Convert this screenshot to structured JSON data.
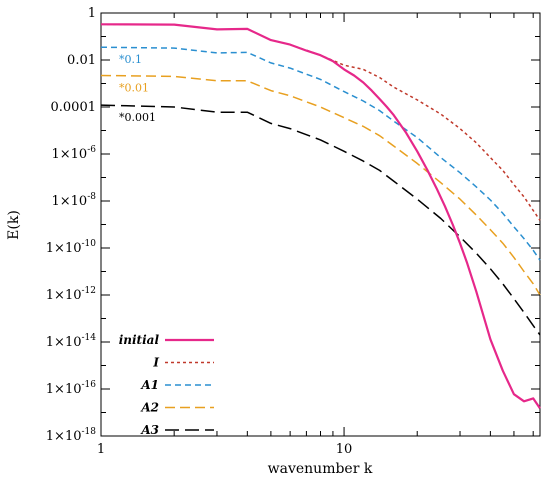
{
  "chart_data": {
    "type": "line",
    "title": "",
    "xlabel": "wavenumber k",
    "ylabel": "E(k)",
    "xscale": "log",
    "yscale": "log",
    "xlim": [
      1,
      64
    ],
    "ylim": [
      1e-18,
      1
    ],
    "grid": false,
    "legend_position": "bottom-left",
    "x_ticks": [
      {
        "value": 1,
        "label": "1"
      },
      {
        "value": 10,
        "label": "10"
      }
    ],
    "y_ticks": [
      {
        "value": 1,
        "base": "1",
        "exp": ""
      },
      {
        "value": 0.01,
        "base": "0.01",
        "exp": ""
      },
      {
        "value": 0.0001,
        "base": "0.0001",
        "exp": ""
      },
      {
        "value": 1e-06,
        "base": "1×10",
        "exp": "-6"
      },
      {
        "value": 1e-08,
        "base": "1×10",
        "exp": "-8"
      },
      {
        "value": 1e-10,
        "base": "1×10",
        "exp": "-10"
      },
      {
        "value": 1e-12,
        "base": "1×10",
        "exp": "-12"
      },
      {
        "value": 1e-14,
        "base": "1×10",
        "exp": "-14"
      },
      {
        "value": 1e-16,
        "base": "1×10",
        "exp": "-16"
      },
      {
        "value": 1e-18,
        "base": "1×10",
        "exp": "-18"
      }
    ],
    "annotations": [
      {
        "text": "*0.1",
        "color": "#2a8fd0",
        "x": 1,
        "y": 0.035
      },
      {
        "text": "*0.01",
        "color": "#e8a020",
        "x": 1,
        "y": 0.0022
      },
      {
        "text": "*0.001",
        "color": "#000000",
        "x": 1,
        "y": 0.00012
      }
    ],
    "series": [
      {
        "name": "initial",
        "color": "#e6288a",
        "dash": "",
        "width": 2.2,
        "x": [
          1,
          2,
          3,
          4,
          5,
          6,
          7,
          8,
          9,
          10,
          11,
          12,
          13,
          14,
          15,
          16,
          18,
          20,
          22,
          24,
          26,
          28,
          30,
          32,
          35,
          40,
          45,
          50,
          55,
          60,
          64
        ],
        "y": [
          0.33,
          0.32,
          0.2,
          0.21,
          0.07,
          0.045,
          0.025,
          0.016,
          0.009,
          0.004,
          0.0022,
          0.0011,
          0.0005,
          0.00022,
          0.0001,
          4.5e-05,
          8e-06,
          1.3e-06,
          2.1e-07,
          3.5e-08,
          6e-09,
          1e-09,
          1.6e-10,
          2.5e-11,
          1.4e-12,
          1.3e-14,
          6e-16,
          6e-17,
          3e-17,
          4e-17,
          1.5e-17
        ]
      },
      {
        "name": "I",
        "color": "#c0392b",
        "dash": "3,3",
        "width": 1.5,
        "x": [
          1,
          2,
          3,
          4,
          5,
          6,
          8,
          10,
          12,
          14,
          16,
          20,
          25,
          30,
          35,
          40,
          45,
          50,
          55,
          60,
          64
        ],
        "y": [
          0.33,
          0.32,
          0.2,
          0.21,
          0.07,
          0.045,
          0.016,
          0.006,
          0.004,
          0.0018,
          0.0007,
          0.0002,
          5e-05,
          1.2e-05,
          3e-06,
          7e-07,
          2e-07,
          5e-08,
          1.5e-08,
          4e-09,
          1.5e-09
        ]
      },
      {
        "name": "A1",
        "color": "#2a8fd0",
        "dash": "6,4",
        "width": 1.5,
        "x": [
          1,
          2,
          3,
          4,
          5,
          6,
          8,
          10,
          12,
          14,
          16,
          20,
          25,
          30,
          35,
          40,
          45,
          50,
          55,
          60,
          64
        ],
        "y": [
          0.035,
          0.032,
          0.02,
          0.021,
          0.0075,
          0.0045,
          0.0015,
          0.00045,
          0.00018,
          7e-05,
          2.5e-05,
          5e-06,
          7e-07,
          1.6e-07,
          4e-08,
          1.1e-08,
          3e-09,
          8e-10,
          2.5e-10,
          8e-11,
          3e-11
        ]
      },
      {
        "name": "A2",
        "color": "#e8a020",
        "dash": "10,5",
        "width": 1.5,
        "x": [
          1,
          2,
          3,
          4,
          5,
          6,
          8,
          10,
          12,
          14,
          16,
          20,
          25,
          30,
          35,
          40,
          45,
          50,
          55,
          60,
          64
        ],
        "y": [
          0.0022,
          0.002,
          0.0013,
          0.0013,
          0.0005,
          0.0003,
          0.0001,
          3.5e-05,
          1.5e-05,
          6e-06,
          2.2e-06,
          4e-07,
          6e-08,
          1.2e-08,
          2.5e-09,
          6e-10,
          1.6e-10,
          4e-11,
          1e-11,
          3e-12,
          1e-12
        ]
      },
      {
        "name": "A3",
        "color": "#000000",
        "dash": "14,6",
        "width": 1.5,
        "x": [
          1,
          2,
          3,
          4,
          5,
          6,
          8,
          10,
          12,
          14,
          16,
          20,
          25,
          30,
          35,
          40,
          45,
          50,
          55,
          60,
          64
        ],
        "y": [
          0.00012,
          0.0001,
          6e-05,
          6e-05,
          2e-05,
          1.2e-05,
          4e-06,
          1.3e-06,
          5e-07,
          2e-07,
          7e-08,
          1.2e-08,
          1.8e-09,
          3e-10,
          6e-11,
          1.3e-11,
          3e-12,
          7e-13,
          1.8e-13,
          5e-14,
          2e-14
        ]
      }
    ]
  }
}
